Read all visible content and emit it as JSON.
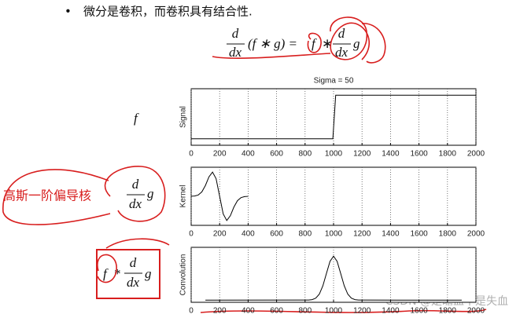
{
  "slide": {
    "bullet": "微分是卷积，而卷积具有结合性.",
    "eq1": {
      "num": "d",
      "den": "dx",
      "lhs": "(f ∗ g) =",
      "f": "f",
      "op": "∗",
      "num2": "d",
      "den2": "dx",
      "g": "g"
    },
    "signal_label": "f",
    "kernel_note": "高斯一阶偏导核",
    "eq2": {
      "num": "d",
      "den": "dx",
      "g": "g"
    },
    "eq3": {
      "f": "f",
      "op": "*",
      "num": "d",
      "den": "dx",
      "g": "g"
    },
    "watermark": "CSDN @是瞻血不是失血"
  },
  "chart_data": [
    {
      "type": "line",
      "title": "Sigma = 50",
      "y_label": "Signal",
      "color": "#000000",
      "grid": true,
      "x": [
        0,
        995,
        1015,
        2000
      ],
      "values": [
        0,
        0,
        1,
        1
      ],
      "xlim": [
        0,
        2000
      ],
      "ylim": [
        -0.15,
        1.15
      ],
      "xticks": [
        0,
        200,
        400,
        600,
        800,
        1000,
        1200,
        1400,
        1600,
        1800,
        2000
      ]
    },
    {
      "type": "line",
      "y_label": "Kernel",
      "color": "#000000",
      "grid": true,
      "x": [
        0,
        25,
        50,
        75,
        100,
        125,
        150,
        175,
        200,
        225,
        250,
        275,
        300,
        325,
        350,
        375,
        400
      ],
      "values": [
        0.002,
        0.013,
        0.055,
        0.181,
        0.446,
        0.803,
        1,
        0.728,
        0,
        -0.728,
        -1,
        -0.803,
        -0.446,
        -0.181,
        -0.055,
        -0.013,
        -0.002
      ],
      "xlim": [
        0,
        2000
      ],
      "ylim": [
        -1.2,
        1.2
      ],
      "xticks": [
        0,
        200,
        400,
        600,
        800,
        1000,
        1200,
        1400,
        1600,
        1800,
        2000
      ]
    },
    {
      "type": "line",
      "y_label": "Convolution",
      "color": "#000000",
      "grid": true,
      "x": [
        100,
        800,
        825,
        850,
        875,
        900,
        925,
        950,
        975,
        1000,
        1025,
        1050,
        1075,
        1100,
        1125,
        1150,
        1175,
        1200,
        1900
      ],
      "values": [
        0,
        0.0003,
        0.002,
        0.011,
        0.044,
        0.135,
        0.325,
        0.607,
        0.882,
        1,
        0.882,
        0.607,
        0.325,
        0.135,
        0.044,
        0.011,
        0.002,
        0.0003,
        0
      ],
      "xlim": [
        0,
        2000
      ],
      "ylim": [
        -0.05,
        1.2
      ],
      "xticks": [
        0,
        200,
        400,
        600,
        800,
        1000,
        1200,
        1400,
        1600,
        1800,
        2000
      ]
    }
  ]
}
